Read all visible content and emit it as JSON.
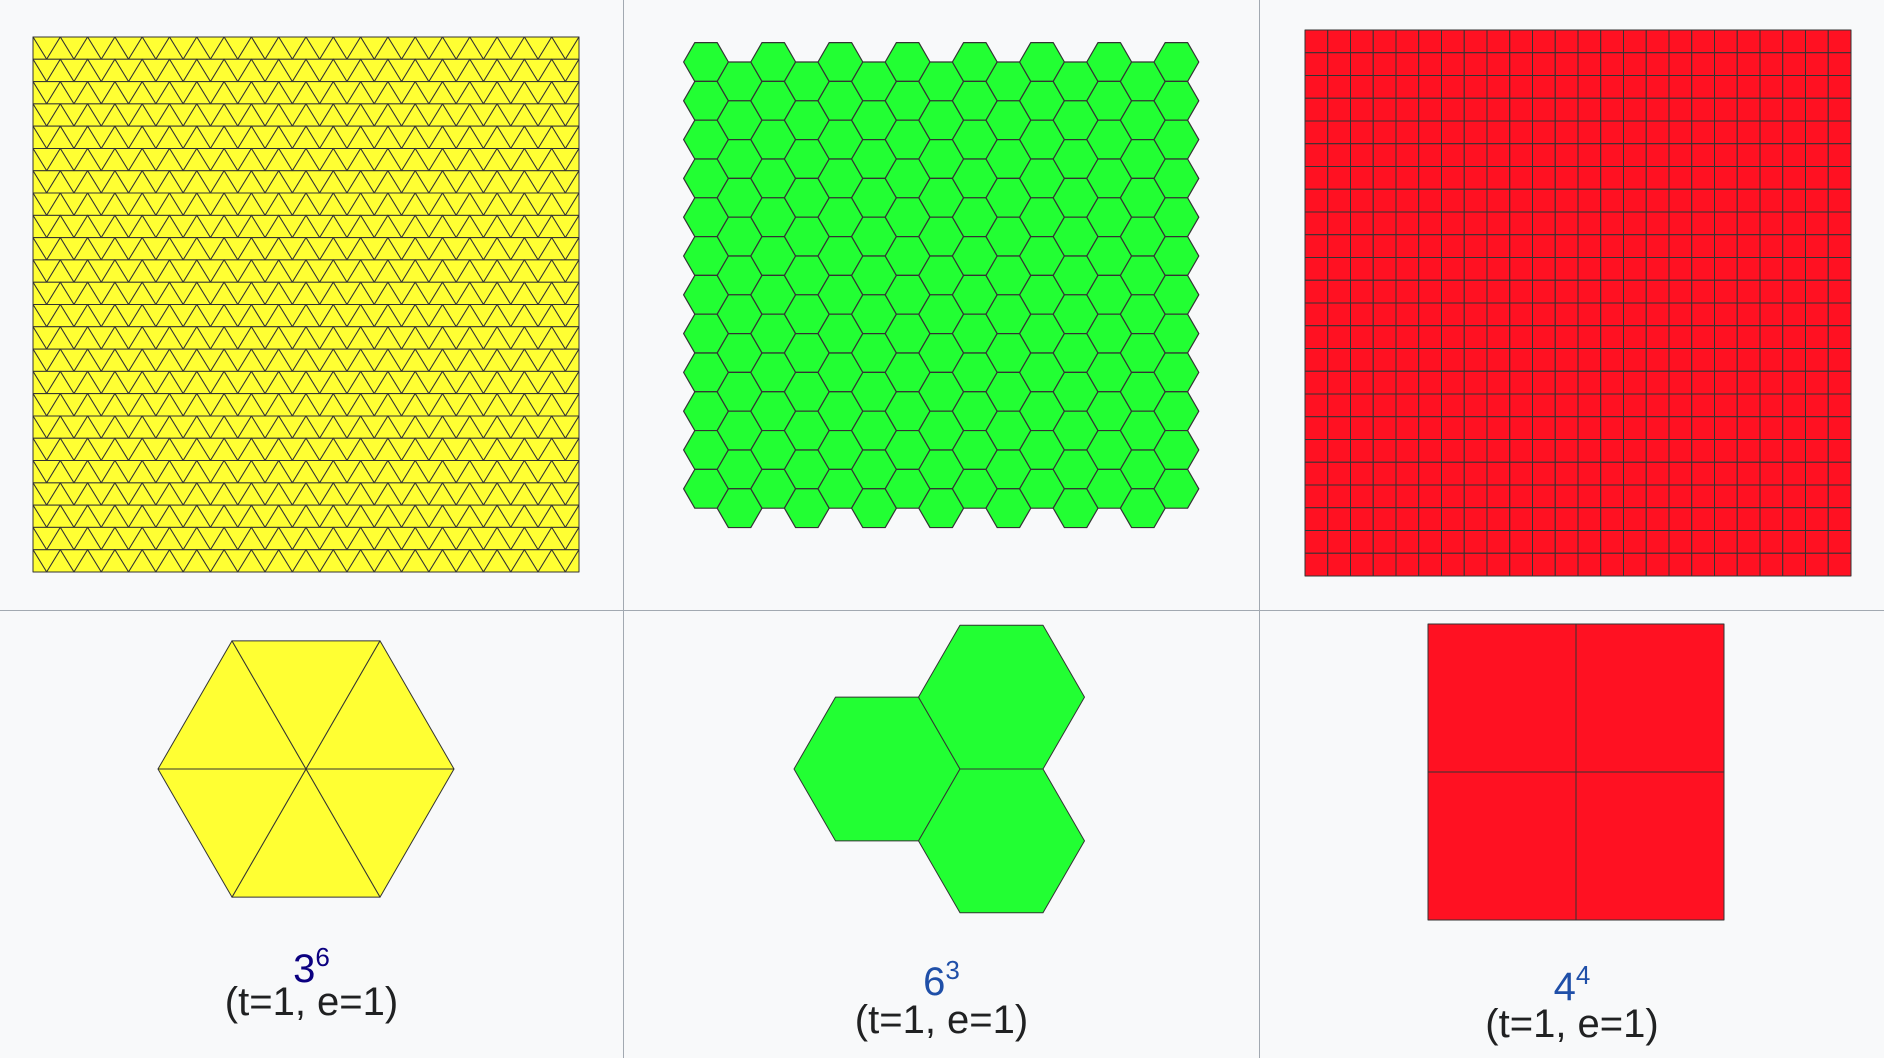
{
  "tilings": [
    {
      "name": "triangular",
      "fill": "#ffff33",
      "tile_shape": "triangle",
      "notation_base": "3",
      "notation_exp": "6",
      "params": "(t=1, e=1)"
    },
    {
      "name": "hexagonal",
      "fill": "#22ff33",
      "tile_shape": "hexagon",
      "notation_base": "6",
      "notation_exp": "3",
      "params": "(t=1, e=1)"
    },
    {
      "name": "square",
      "fill": "#ff1122",
      "tile_shape": "square",
      "notation_base": "4",
      "notation_exp": "4",
      "params": "(t=1, e=1)"
    }
  ],
  "colors": {
    "background": "#f8f9fa",
    "cell_border": "#a2a9b1",
    "tile_stroke": "#333333",
    "link": "#1f4fa8",
    "visited_link": "#0b0080",
    "text": "#202122"
  }
}
